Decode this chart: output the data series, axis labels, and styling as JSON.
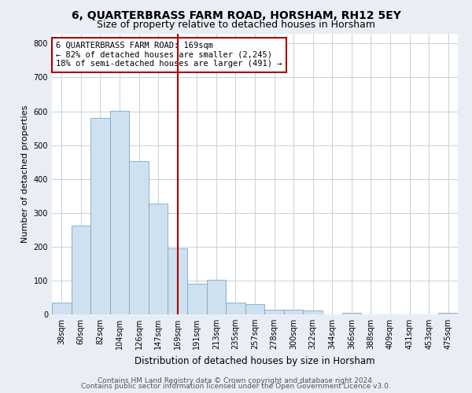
{
  "title": "6, QUARTERBRASS FARM ROAD, HORSHAM, RH12 5EY",
  "subtitle": "Size of property relative to detached houses in Horsham",
  "xlabel": "Distribution of detached houses by size in Horsham",
  "ylabel": "Number of detached properties",
  "categories": [
    "38sqm",
    "60sqm",
    "82sqm",
    "104sqm",
    "126sqm",
    "147sqm",
    "169sqm",
    "191sqm",
    "213sqm",
    "235sqm",
    "257sqm",
    "278sqm",
    "300sqm",
    "322sqm",
    "344sqm",
    "366sqm",
    "388sqm",
    "409sqm",
    "431sqm",
    "453sqm",
    "475sqm"
  ],
  "values": [
    35,
    262,
    580,
    602,
    453,
    327,
    195,
    90,
    102,
    35,
    30,
    15,
    13,
    11,
    0,
    5,
    0,
    0,
    0,
    0,
    5
  ],
  "bar_color": "#cfe0f0",
  "bar_edge_color": "#7aaac8",
  "highlight_index": 6,
  "highlight_line_color": "#aa0000",
  "annotation_text": "6 QUARTERBRASS FARM ROAD: 169sqm\n← 82% of detached houses are smaller (2,245)\n18% of semi-detached houses are larger (491) →",
  "annotation_box_color": "#ffffff",
  "annotation_box_edge_color": "#aa0000",
  "ylim": [
    0,
    830
  ],
  "yticks": [
    0,
    100,
    200,
    300,
    400,
    500,
    600,
    700,
    800
  ],
  "bg_color": "#e8eef4",
  "plot_bg_color": "#ffffff",
  "grid_color": "#c8d0d8",
  "footer_line1": "Contains HM Land Registry data © Crown copyright and database right 2024.",
  "footer_line2": "Contains public sector information licensed under the Open Government Licence v3.0.",
  "title_fontsize": 10,
  "subtitle_fontsize": 9,
  "xlabel_fontsize": 8.5,
  "ylabel_fontsize": 8,
  "tick_fontsize": 7,
  "annotation_fontsize": 7.5,
  "footer_fontsize": 6.5
}
